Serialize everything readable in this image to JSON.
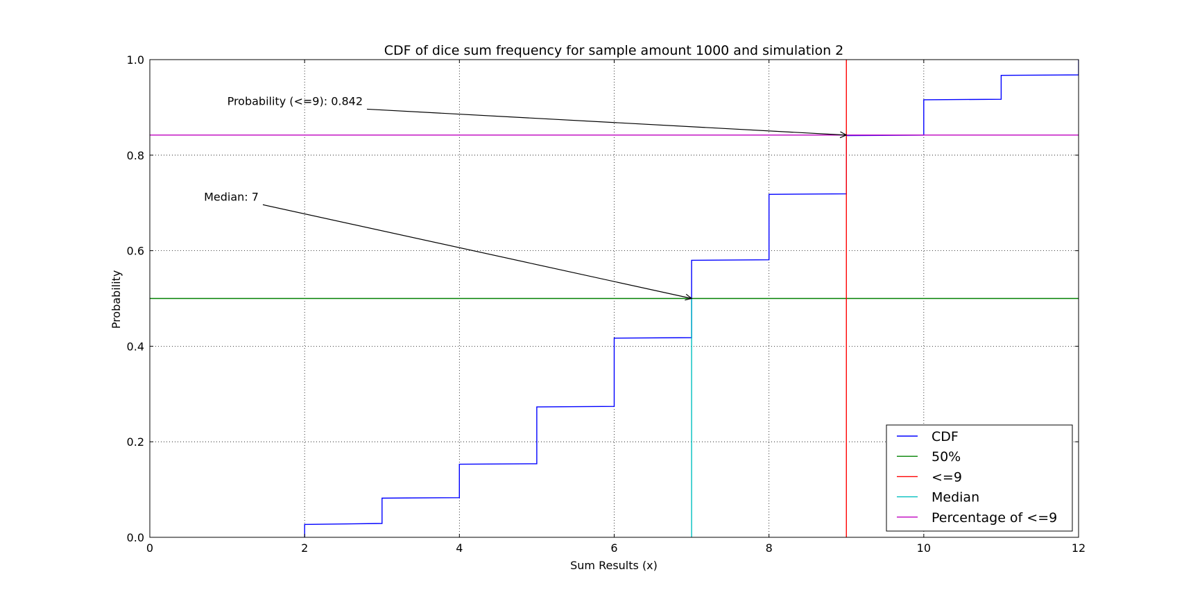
{
  "chart_data": {
    "type": "line",
    "title": "CDF of dice sum frequency for sample amount 1000 and simulation 2",
    "xlabel": "Sum Results (x)",
    "ylabel": "Probability",
    "xlim": [
      0,
      12
    ],
    "ylim": [
      0,
      1
    ],
    "xticks": [
      0,
      2,
      4,
      6,
      8,
      10,
      12
    ],
    "yticks": [
      0.0,
      0.2,
      0.4,
      0.6,
      0.8,
      1.0
    ],
    "xtick_labels": [
      "0",
      "2",
      "4",
      "6",
      "8",
      "10",
      "12"
    ],
    "ytick_labels": [
      "0.0",
      "0.2",
      "0.4",
      "0.6",
      "0.8",
      "1.0"
    ],
    "grid": true,
    "legend_position": "lower-right",
    "series": [
      {
        "name": "CDF",
        "color": "#0000ff",
        "kind": "step",
        "points": [
          [
            2,
            0.0
          ],
          [
            2,
            0.027
          ],
          [
            3,
            0.029
          ],
          [
            3,
            0.082
          ],
          [
            4,
            0.083
          ],
          [
            4,
            0.153
          ],
          [
            5,
            0.154
          ],
          [
            5,
            0.273
          ],
          [
            6,
            0.274
          ],
          [
            6,
            0.417
          ],
          [
            7,
            0.418
          ],
          [
            7,
            0.58
          ],
          [
            8,
            0.581
          ],
          [
            8,
            0.718
          ],
          [
            9,
            0.719
          ],
          [
            9,
            0.841
          ],
          [
            10,
            0.842
          ],
          [
            10,
            0.916
          ],
          [
            11,
            0.917
          ],
          [
            11,
            0.967
          ],
          [
            12,
            0.968
          ],
          [
            12,
            1.0
          ]
        ]
      },
      {
        "name": "50%",
        "color": "#008000",
        "kind": "hline",
        "y": 0.5
      },
      {
        "name": "<=9",
        "color": "#ff0000",
        "kind": "vline",
        "x": 9
      },
      {
        "name": "Median",
        "color": "#00bfbf",
        "kind": "vsegment",
        "x": 7,
        "y0": 0,
        "y1": 0.5
      },
      {
        "name": "Percentage of <=9",
        "color": "#bf00bf",
        "kind": "hline",
        "y": 0.842
      }
    ],
    "annotations": [
      {
        "text": "Probability (<=9): 0.842",
        "text_at": [
          1.0,
          0.905
        ],
        "arrow_to": [
          9,
          0.842
        ]
      },
      {
        "text": "Median: 7",
        "text_at": [
          0.7,
          0.705
        ],
        "arrow_to": [
          7,
          0.5
        ]
      }
    ]
  }
}
